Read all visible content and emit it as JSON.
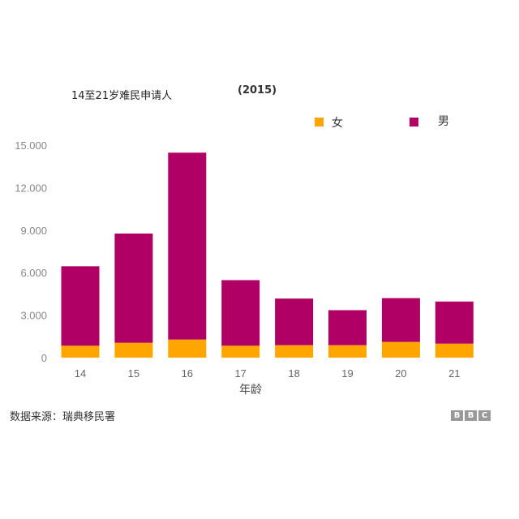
{
  "chart_data": {
    "type": "bar",
    "stacked": true,
    "title": "14至21岁难民申请人",
    "subtitle": "(2015)",
    "xlabel": "年龄",
    "ylabel": "",
    "categories": [
      "14",
      "15",
      "16",
      "17",
      "18",
      "19",
      "20",
      "21"
    ],
    "series": [
      {
        "name": "女",
        "color": "#ffa500",
        "values": [
          840,
          1050,
          1280,
          840,
          880,
          880,
          1110,
          990
        ]
      },
      {
        "name": "男",
        "color": "#b00066",
        "values": [
          5610,
          7710,
          13190,
          4630,
          3290,
          2470,
          3090,
          2970
        ]
      }
    ],
    "ylim": [
      0,
      15000
    ],
    "yticks": [
      0,
      3000,
      6000,
      9000,
      12000,
      15000
    ],
    "ytick_labels": [
      "0",
      "3.000",
      "6.000",
      "9.000",
      "12.000",
      "15.000"
    ],
    "grid": false,
    "legend": "top-right"
  },
  "source": "数据来源：瑞典移民署",
  "logo": [
    "B",
    "B",
    "C"
  ]
}
